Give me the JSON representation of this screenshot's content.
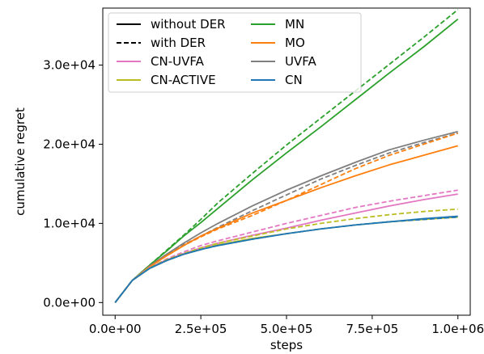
{
  "chart_data": {
    "type": "line",
    "xlabel": "steps",
    "ylabel": "cumulative regret",
    "xlim": [
      -36000,
      1036000
    ],
    "ylim": [
      -1600,
      37200
    ],
    "x_ticks": [
      0,
      250000,
      500000,
      750000,
      1000000
    ],
    "x_tick_labels": [
      "0.0e+00",
      "2.5e+05",
      "5.0e+05",
      "7.5e+05",
      "1.0e+06"
    ],
    "y_ticks": [
      0,
      10000,
      20000,
      30000
    ],
    "y_tick_labels": [
      "0.0e+00",
      "1.0e+04",
      "2.0e+04",
      "3.0e+04"
    ],
    "grid": false,
    "legend_position": "top-left",
    "legend": [
      {
        "label": "without DER",
        "color": "#000000",
        "dash": false
      },
      {
        "label": "with DER",
        "color": "#000000",
        "dash": true
      },
      {
        "label": "CN-UVFA",
        "color": "#e377c2",
        "dash": false
      },
      {
        "label": "CN-ACTIVE",
        "color": "#bcbd22",
        "dash": false
      },
      {
        "label": "MN",
        "color": "#2ca02c",
        "dash": false
      },
      {
        "label": "MO",
        "color": "#ff7f0e",
        "dash": false
      },
      {
        "label": "UVFA",
        "color": "#7f7f7f",
        "dash": false
      },
      {
        "label": "CN",
        "color": "#1f77b4",
        "dash": false
      }
    ],
    "series": [
      {
        "name": "MN",
        "der": "with DER",
        "color": "#2ca02c",
        "dash": true,
        "x": [
          0,
          50000,
          100000,
          150000,
          200000,
          250000,
          300000,
          400000,
          500000,
          600000,
          700000,
          800000,
          900000,
          1000000
        ],
        "y": [
          0,
          2800,
          4700,
          6600,
          8500,
          10500,
          12600,
          16300,
          19900,
          23300,
          26700,
          30100,
          33500,
          37000
        ]
      },
      {
        "name": "MN",
        "der": "without DER",
        "color": "#2ca02c",
        "dash": false,
        "x": [
          0,
          50000,
          100000,
          150000,
          200000,
          250000,
          300000,
          400000,
          500000,
          600000,
          700000,
          800000,
          900000,
          1000000
        ],
        "y": [
          0,
          2800,
          4700,
          6500,
          8400,
          10100,
          11900,
          15500,
          18900,
          22200,
          25600,
          29000,
          32300,
          35800
        ]
      },
      {
        "name": "UVFA",
        "der": "without DER",
        "color": "#7f7f7f",
        "dash": false,
        "x": [
          0,
          50000,
          100000,
          150000,
          200000,
          250000,
          300000,
          400000,
          500000,
          600000,
          700000,
          800000,
          900000,
          1000000
        ],
        "y": [
          0,
          2800,
          4600,
          6100,
          7500,
          8800,
          10000,
          12200,
          14200,
          16000,
          17700,
          19300,
          20500,
          21600
        ]
      },
      {
        "name": "UVFA",
        "der": "with DER",
        "color": "#7f7f7f",
        "dash": true,
        "x": [
          0,
          50000,
          100000,
          150000,
          200000,
          250000,
          300000,
          400000,
          500000,
          600000,
          700000,
          800000,
          900000,
          1000000
        ],
        "y": [
          0,
          2800,
          4500,
          6000,
          7300,
          8400,
          9500,
          11600,
          13600,
          15600,
          17300,
          18900,
          20200,
          21400
        ]
      },
      {
        "name": "MO",
        "der": "with DER",
        "color": "#ff7f0e",
        "dash": true,
        "x": [
          0,
          50000,
          100000,
          150000,
          200000,
          250000,
          300000,
          400000,
          500000,
          600000,
          700000,
          800000,
          900000,
          1000000
        ],
        "y": [
          0,
          2800,
          4500,
          5900,
          7200,
          8300,
          9300,
          11000,
          12900,
          14900,
          16900,
          18600,
          20000,
          21400
        ]
      },
      {
        "name": "MO",
        "der": "without DER",
        "color": "#ff7f0e",
        "dash": false,
        "x": [
          0,
          50000,
          100000,
          150000,
          200000,
          250000,
          300000,
          400000,
          500000,
          600000,
          700000,
          800000,
          900000,
          1000000
        ],
        "y": [
          0,
          2800,
          4500,
          5900,
          7200,
          8400,
          9400,
          11300,
          12900,
          14500,
          16000,
          17400,
          18600,
          19800
        ]
      },
      {
        "name": "CN-UVFA",
        "der": "with DER",
        "color": "#e377c2",
        "dash": true,
        "x": [
          0,
          50000,
          100000,
          150000,
          200000,
          250000,
          300000,
          400000,
          500000,
          600000,
          700000,
          800000,
          900000,
          1000000
        ],
        "y": [
          0,
          2800,
          4400,
          5500,
          6400,
          7200,
          7800,
          8900,
          10000,
          11000,
          12000,
          12800,
          13500,
          14200
        ]
      },
      {
        "name": "CN-UVFA",
        "der": "without DER",
        "color": "#e377c2",
        "dash": false,
        "x": [
          0,
          50000,
          100000,
          150000,
          200000,
          250000,
          300000,
          400000,
          500000,
          600000,
          700000,
          800000,
          900000,
          1000000
        ],
        "y": [
          0,
          2800,
          4400,
          5400,
          6200,
          6900,
          7500,
          8500,
          9400,
          10400,
          11300,
          12200,
          13000,
          13700
        ]
      },
      {
        "name": "CN-ACTIVE",
        "der": "with DER",
        "color": "#bcbd22",
        "dash": true,
        "x": [
          0,
          50000,
          100000,
          150000,
          200000,
          250000,
          300000,
          400000,
          500000,
          600000,
          700000,
          800000,
          900000,
          1000000
        ],
        "y": [
          0,
          2800,
          4400,
          5400,
          6200,
          6900,
          7500,
          8400,
          9300,
          10000,
          10600,
          11100,
          11500,
          11800
        ]
      },
      {
        "name": "CN-ACTIVE",
        "der": "without DER",
        "color": "#bcbd22",
        "dash": false,
        "x": [
          0,
          50000,
          100000,
          150000,
          200000,
          250000,
          300000,
          400000,
          500000,
          600000,
          700000,
          800000,
          900000,
          1000000
        ],
        "y": [
          0,
          2800,
          4300,
          5300,
          6100,
          6700,
          7300,
          8100,
          8700,
          9300,
          9800,
          10200,
          10500,
          10800
        ]
      },
      {
        "name": "CN",
        "der": "without DER",
        "color": "#1f77b4",
        "dash": false,
        "x": [
          0,
          50000,
          100000,
          150000,
          200000,
          250000,
          300000,
          400000,
          500000,
          600000,
          700000,
          800000,
          900000,
          1000000
        ],
        "y": [
          0,
          2800,
          4300,
          5300,
          6100,
          6700,
          7200,
          8000,
          8700,
          9300,
          9800,
          10200,
          10600,
          10900
        ]
      },
      {
        "name": "CN",
        "der": "with DER",
        "color": "#1f77b4",
        "dash": true,
        "x": [
          0,
          50000,
          100000,
          150000,
          200000,
          250000,
          300000,
          400000,
          500000,
          600000,
          700000,
          800000,
          900000,
          1000000
        ],
        "y": [
          0,
          2800,
          4300,
          5300,
          6100,
          6700,
          7200,
          8000,
          8700,
          9300,
          9800,
          10200,
          10500,
          10800
        ]
      }
    ]
  }
}
